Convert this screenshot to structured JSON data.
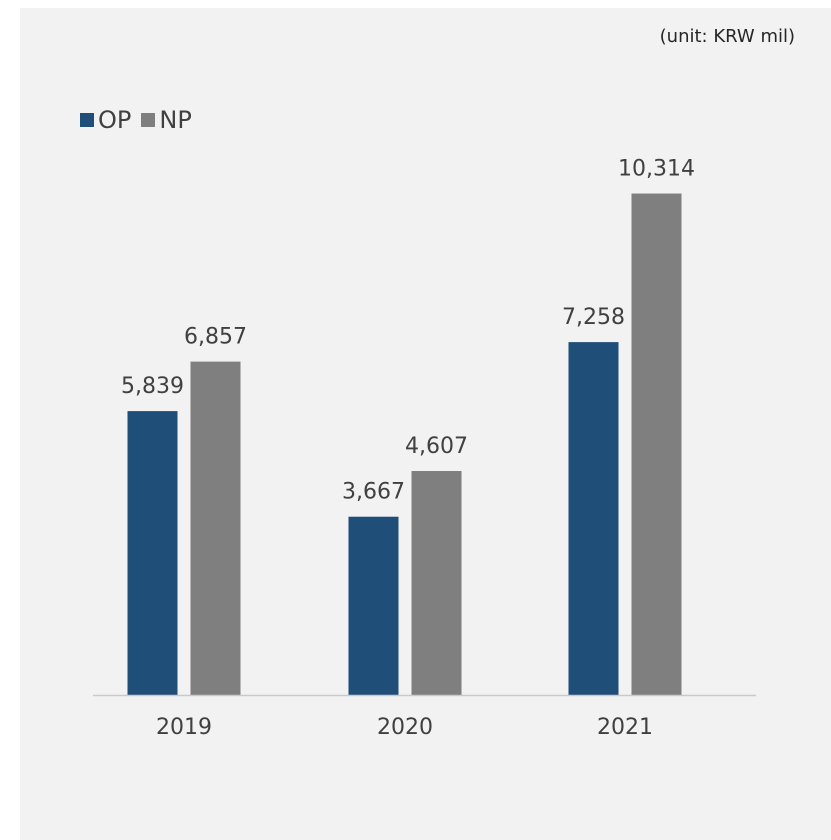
{
  "unit_note": "(unit: KRW mil)",
  "colors": {
    "OP": "#1f4e79",
    "NP": "#7f7f7f",
    "axis": "#c9c9c9",
    "label": "#404040"
  },
  "chart_data": {
    "type": "bar",
    "categories": [
      "2019",
      "2020",
      "2021"
    ],
    "series": [
      {
        "name": "OP",
        "values": [
          5839,
          3667,
          7258
        ],
        "labels": [
          "5,839",
          "3,667",
          "7,258"
        ]
      },
      {
        "name": "NP",
        "values": [
          6857,
          4607,
          10314
        ],
        "labels": [
          "6,857",
          "4,607",
          "10,314"
        ]
      }
    ],
    "ylim": [
      0,
      11000
    ],
    "grid": false,
    "legend_position": "top-left"
  }
}
